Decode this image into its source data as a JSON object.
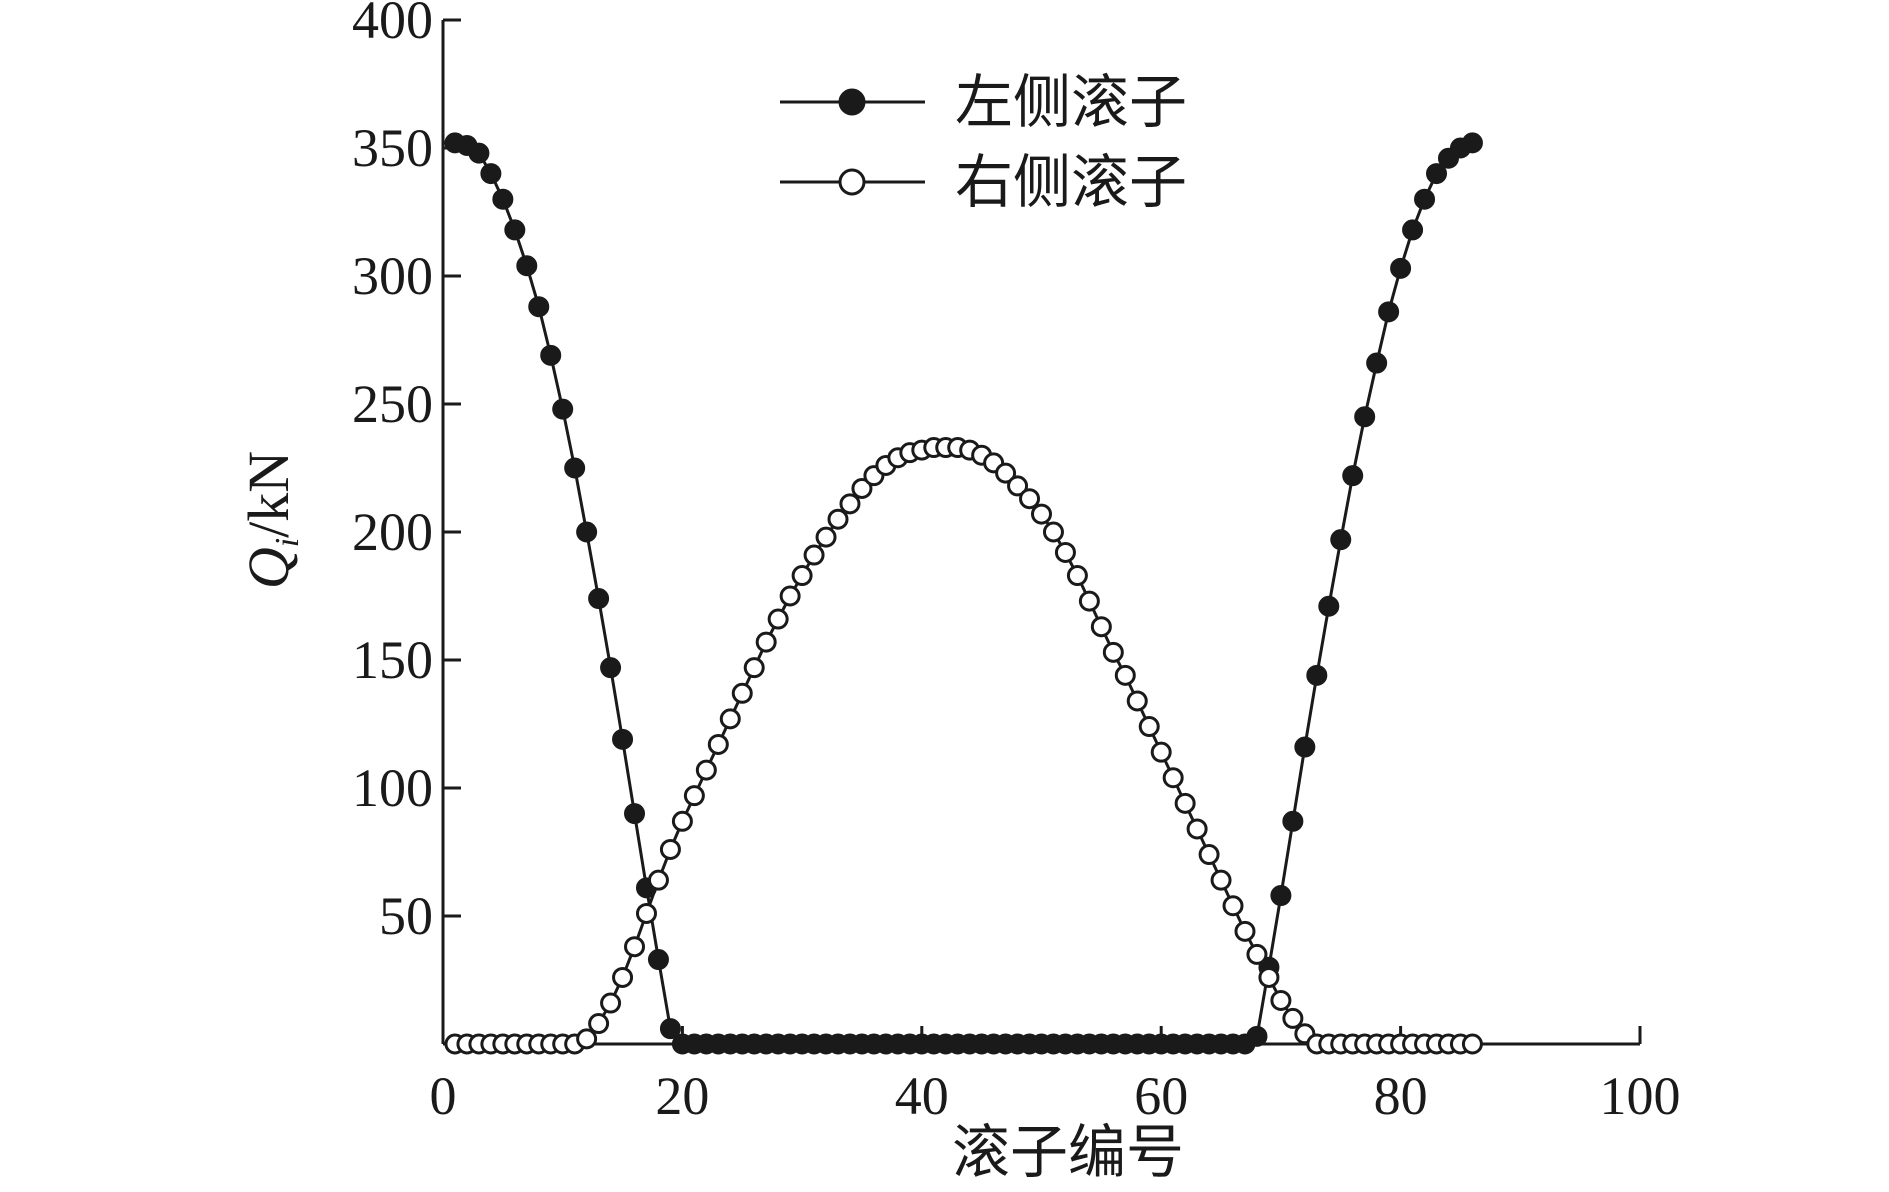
{
  "chart_data": {
    "type": "line",
    "xlabel": "滚子编号",
    "ylabel_main": "Q",
    "ylabel_sub": "i",
    "ylabel_unit": "/kN",
    "xlim": [
      0,
      100
    ],
    "ylim": [
      0,
      400
    ],
    "xticks": [
      0,
      20,
      40,
      60,
      80,
      100
    ],
    "xtick_labels": [
      "0",
      "20",
      "40",
      "60",
      "80",
      "100"
    ],
    "yticks": [
      50,
      100,
      150,
      200,
      250,
      300,
      350,
      400
    ],
    "ytick_labels": [
      "50",
      "100",
      "150",
      "200",
      "250",
      "300",
      "350",
      "400"
    ],
    "grid": false,
    "legend_position": "top-center",
    "series": [
      {
        "name": "左侧滚子",
        "marker": "filled-circle",
        "color": "#1a1a1a",
        "x": [
          1,
          2,
          3,
          4,
          5,
          6,
          7,
          8,
          9,
          10,
          11,
          12,
          13,
          14,
          15,
          16,
          17,
          18,
          19,
          20,
          21,
          22,
          23,
          24,
          25,
          26,
          27,
          28,
          29,
          30,
          31,
          32,
          33,
          34,
          35,
          36,
          37,
          38,
          39,
          40,
          41,
          42,
          43,
          44,
          45,
          46,
          47,
          48,
          49,
          50,
          51,
          52,
          53,
          54,
          55,
          56,
          57,
          58,
          59,
          60,
          61,
          62,
          63,
          64,
          65,
          66,
          67,
          68,
          69,
          70,
          71,
          72,
          73,
          74,
          75,
          76,
          77,
          78,
          79,
          80,
          81,
          82,
          83,
          84,
          85,
          86
        ],
        "y": [
          352,
          351,
          348,
          340,
          330,
          318,
          304,
          288,
          269,
          248,
          225,
          200,
          174,
          147,
          119,
          90,
          61,
          33,
          6,
          0,
          0,
          0,
          0,
          0,
          0,
          0,
          0,
          0,
          0,
          0,
          0,
          0,
          0,
          0,
          0,
          0,
          0,
          0,
          0,
          0,
          0,
          0,
          0,
          0,
          0,
          0,
          0,
          0,
          0,
          0,
          0,
          0,
          0,
          0,
          0,
          0,
          0,
          0,
          0,
          0,
          0,
          0,
          0,
          0,
          0,
          0,
          0,
          3,
          30,
          58,
          87,
          116,
          144,
          171,
          197,
          222,
          245,
          266,
          286,
          303,
          318,
          330,
          340,
          346,
          350,
          352
        ]
      },
      {
        "name": "右侧滚子",
        "marker": "open-circle",
        "color": "#1a1a1a",
        "x": [
          1,
          2,
          3,
          4,
          5,
          6,
          7,
          8,
          9,
          10,
          11,
          12,
          13,
          14,
          15,
          16,
          17,
          18,
          19,
          20,
          21,
          22,
          23,
          24,
          25,
          26,
          27,
          28,
          29,
          30,
          31,
          32,
          33,
          34,
          35,
          36,
          37,
          38,
          39,
          40,
          41,
          42,
          43,
          44,
          45,
          46,
          47,
          48,
          49,
          50,
          51,
          52,
          53,
          54,
          55,
          56,
          57,
          58,
          59,
          60,
          61,
          62,
          63,
          64,
          65,
          66,
          67,
          68,
          69,
          70,
          71,
          72,
          73,
          74,
          75,
          76,
          77,
          78,
          79,
          80,
          81,
          82,
          83,
          84,
          85,
          86
        ],
        "y": [
          0,
          0,
          0,
          0,
          0,
          0,
          0,
          0,
          0,
          0,
          0,
          2,
          8,
          16,
          26,
          38,
          51,
          64,
          76,
          87,
          97,
          107,
          117,
          127,
          137,
          147,
          157,
          166,
          175,
          183,
          191,
          198,
          205,
          211,
          217,
          222,
          226,
          229,
          231,
          232,
          233,
          233,
          233,
          232,
          230,
          227,
          223,
          218,
          213,
          207,
          200,
          192,
          183,
          173,
          163,
          153,
          144,
          134,
          124,
          114,
          104,
          94,
          84,
          74,
          64,
          54,
          44,
          35,
          26,
          17,
          10,
          4,
          0,
          0,
          0,
          0,
          0,
          0,
          0,
          0,
          0,
          0,
          0,
          0,
          0,
          0
        ]
      }
    ]
  }
}
